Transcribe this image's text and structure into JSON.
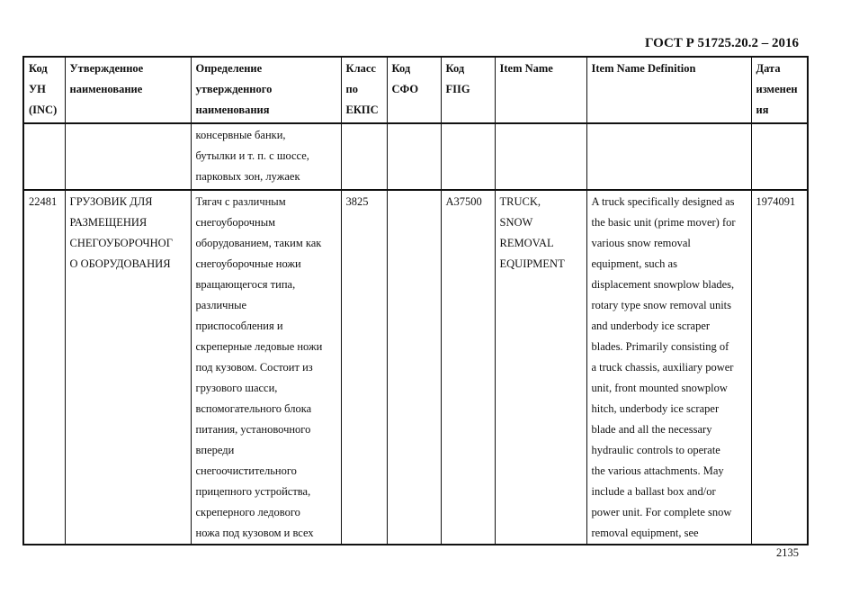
{
  "header": {
    "standard": "ГОСТ Р 51725.20.2 – 2016"
  },
  "footer": {
    "page_number": "2135"
  },
  "table": {
    "columns": [
      "Код\nУН\n(INC)",
      "Утвержденное\nнаименование",
      "Определение\nутвержденного\nнаименования",
      "Класс\nпо\nЕКПС",
      "Код\nСФО",
      "Код\nFIIG",
      "Item Name",
      "Item Name Definition",
      "Дата\nизменен\nия"
    ],
    "rows": [
      [
        "",
        "",
        "консервные банки,\nбутылки и т. п. с шоссе,\nпарковых зон, лужаек",
        "",
        "",
        "",
        "",
        "",
        ""
      ],
      [
        "22481",
        "ГРУЗОВИК ДЛЯ\nРАЗМЕЩЕНИЯ\nСНЕГОУБОРОЧНОГ\nО ОБОРУДОВАНИЯ",
        "Тягач  с различным\nснегоуборочным\nоборудованием, таким как\nснегоуборочные ножи\nвращающегося типа,\nразличные\nприспособления и\nскреперные ледовые ножи\nпод кузовом. Состоит из\nгрузового шасси,\nвспомогательного блока\nпитания, установочного\nвпереди\nснегоочистительного\nприцепного устройства,\nскреперного ледового\nножа под кузовом и всех",
        "3825",
        "",
        "A37500",
        "TRUCK,\nSNOW\nREMOVAL\nEQUIPMENT",
        "A truck specifically designed as\nthe basic unit (prime mover) for\nvarious snow removal\nequipment, such as\ndisplacement snowplow blades,\nrotary type snow removal units\nand underbody ice scraper\nblades. Primarily consisting of\na truck chassis, auxiliary power\nunit, front mounted snowplow\nhitch, underbody ice scraper\nblade and all the necessary\nhydraulic controls to operate\nthe various attachments. May\ninclude a ballast box and/or\npower unit. For complete snow\nremoval equipment, see",
        "1974091"
      ]
    ]
  }
}
